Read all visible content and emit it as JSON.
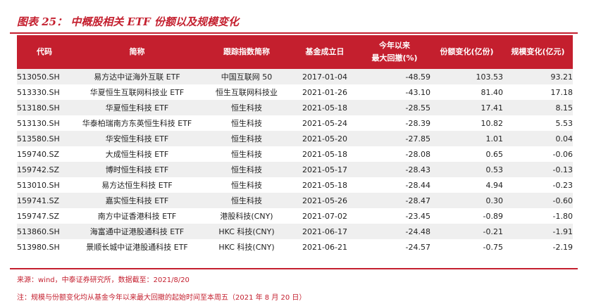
{
  "figure": {
    "title": "图表 25： 中概股相关 ETF 份额以及规模变化"
  },
  "table": {
    "headers": {
      "code": "代码",
      "name": "简称",
      "index": "跟踪指数简称",
      "date": "基金成立日",
      "ytd_line1": "今年以来",
      "ytd_line2": "最大回撤(%)",
      "share": "份额变化(亿份)",
      "scale": "规模变化(亿元)"
    },
    "rows": [
      {
        "code": "513050.SH",
        "name": "易方达中证海外互联 ETF",
        "index": "中国互联网 50",
        "date": "2017-01-04",
        "ytd": "-48.59",
        "share": "103.53",
        "scale": "93.21"
      },
      {
        "code": "513330.SH",
        "name": "华夏恒生互联网科技业 ETF",
        "index": "恒生互联网科技业",
        "date": "2021-01-26",
        "ytd": "-43.10",
        "share": "81.40",
        "scale": "17.18"
      },
      {
        "code": "513180.SH",
        "name": "华夏恒生科技 ETF",
        "index": "恒生科技",
        "date": "2021-05-18",
        "ytd": "-28.55",
        "share": "17.41",
        "scale": "8.15"
      },
      {
        "code": "513130.SH",
        "name": "华泰柏瑞南方东英恒生科技 ETF",
        "index": "恒生科技",
        "date": "2021-05-24",
        "ytd": "-28.39",
        "share": "10.82",
        "scale": "5.53"
      },
      {
        "code": "513580.SH",
        "name": "华安恒生科技 ETF",
        "index": "恒生科技",
        "date": "2021-05-20",
        "ytd": "-27.85",
        "share": "1.01",
        "scale": "0.04"
      },
      {
        "code": "159740.SZ",
        "name": "大成恒生科技 ETF",
        "index": "恒生科技",
        "date": "2021-05-18",
        "ytd": "-28.08",
        "share": "0.65",
        "scale": "-0.06"
      },
      {
        "code": "159742.SZ",
        "name": "博时恒生科技 ETF",
        "index": "恒生科技",
        "date": "2021-05-17",
        "ytd": "-28.43",
        "share": "0.53",
        "scale": "-0.13"
      },
      {
        "code": "513010.SH",
        "name": "易方达恒生科技 ETF",
        "index": "恒生科技",
        "date": "2021-05-18",
        "ytd": "-28.44",
        "share": "4.94",
        "scale": "-0.23"
      },
      {
        "code": "159741.SZ",
        "name": "嘉实恒生科技 ETF",
        "index": "恒生科技",
        "date": "2021-05-26",
        "ytd": "-28.47",
        "share": "0.30",
        "scale": "-0.60"
      },
      {
        "code": "159747.SZ",
        "name": "南方中证香港科技 ETF",
        "index": "港股科技(CNY)",
        "date": "2021-07-02",
        "ytd": "-23.45",
        "share": "-0.89",
        "scale": "-1.80"
      },
      {
        "code": "513860.SH",
        "name": "海富通中证港股通科技 ETF",
        "index": "HKC 科技(CNY)",
        "date": "2021-06-17",
        "ytd": "-24.48",
        "share": "-0.21",
        "scale": "-1.91"
      },
      {
        "code": "513980.SH",
        "name": "景顺长城中证港股通科技 ETF",
        "index": "HKC 科技(CNY)",
        "date": "2021-06-21",
        "ytd": "-24.57",
        "share": "-0.75",
        "scale": "-2.19"
      }
    ]
  },
  "footer": {
    "source": "来源：wind，中泰证券研究所，数据截至：2021/8/20",
    "note": "注：规模与份额变化均从基金今年以来最大回撤的起始时间至本周五（2021 年 8 月 20 日）"
  },
  "colors": {
    "accent": "#c41f2e",
    "row_shade": "#efefef",
    "header_text": "#ffffff"
  }
}
